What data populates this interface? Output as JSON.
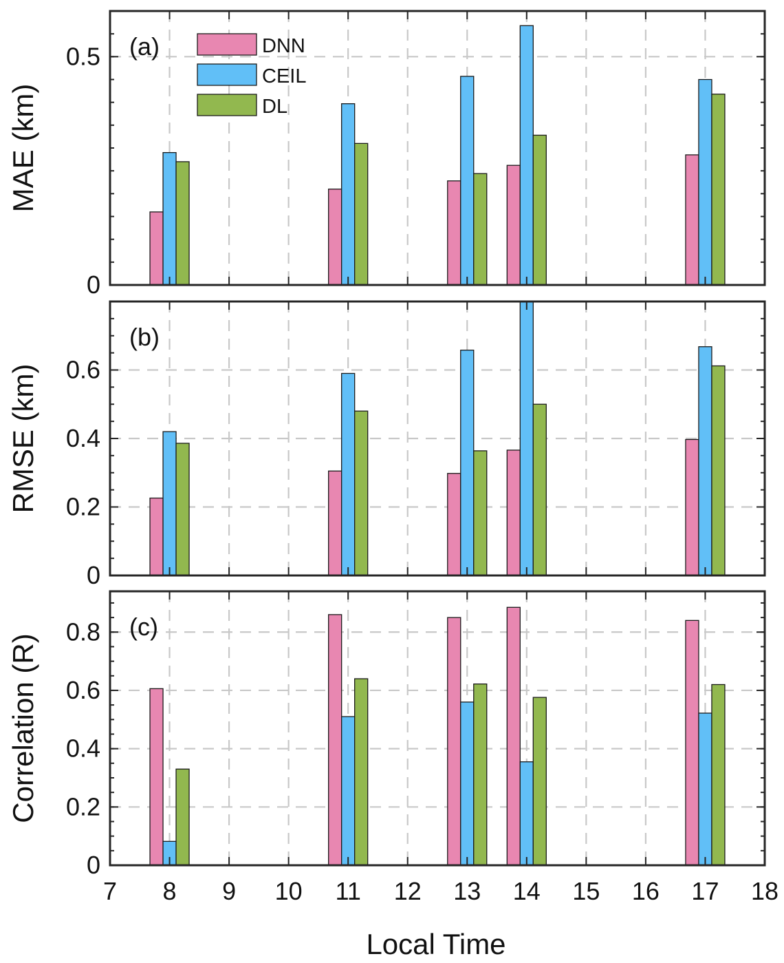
{
  "chart_data": [
    {
      "type": "bar",
      "panel_label": "(a)",
      "ylabel": "MAE (km)",
      "xlabel": "",
      "categories": [
        8,
        11,
        13,
        14,
        17
      ],
      "ylim": [
        0,
        0.6
      ],
      "yticks": [
        0,
        0.5
      ],
      "ytick_labels": [
        "0",
        "0.5"
      ],
      "grid": true,
      "legend": "top-left",
      "series": [
        {
          "name": "DNN",
          "color": "#e887b1",
          "values": [
            0.16,
            0.21,
            0.228,
            0.262,
            0.285
          ]
        },
        {
          "name": "CEIL",
          "color": "#61bff7",
          "values": [
            0.29,
            0.397,
            0.457,
            0.568,
            0.45
          ]
        },
        {
          "name": "DL",
          "color": "#92b84f",
          "values": [
            0.27,
            0.31,
            0.244,
            0.328,
            0.418
          ]
        }
      ]
    },
    {
      "type": "bar",
      "panel_label": "(b)",
      "ylabel": "RMSE (km)",
      "xlabel": "",
      "categories": [
        8,
        11,
        13,
        14,
        17
      ],
      "ylim": [
        0,
        0.8
      ],
      "yticks": [
        0,
        0.2,
        0.4,
        0.6
      ],
      "ytick_labels": [
        "0",
        "0.2",
        "0.4",
        "0.6"
      ],
      "grid": true,
      "series": [
        {
          "name": "DNN",
          "color": "#e887b1",
          "values": [
            0.226,
            0.305,
            0.298,
            0.366,
            0.397
          ]
        },
        {
          "name": "CEIL",
          "color": "#61bff7",
          "values": [
            0.42,
            0.59,
            0.658,
            0.8,
            0.668
          ]
        },
        {
          "name": "DL",
          "color": "#92b84f",
          "values": [
            0.386,
            0.48,
            0.364,
            0.5,
            0.612
          ]
        }
      ]
    },
    {
      "type": "bar",
      "panel_label": "(c)",
      "ylabel": "Correlation (R)",
      "xlabel": "Local Time",
      "categories": [
        8,
        11,
        13,
        14,
        17
      ],
      "ylim": [
        0,
        0.94
      ],
      "yticks": [
        0,
        0.2,
        0.4,
        0.6,
        0.8
      ],
      "ytick_labels": [
        "0",
        "0.2",
        "0.4",
        "0.6",
        "0.8"
      ],
      "grid": true,
      "series": [
        {
          "name": "DNN",
          "color": "#e887b1",
          "values": [
            0.606,
            0.86,
            0.85,
            0.885,
            0.84
          ]
        },
        {
          "name": "CEIL",
          "color": "#61bff7",
          "values": [
            0.082,
            0.51,
            0.56,
            0.355,
            0.522
          ]
        },
        {
          "name": "DL",
          "color": "#92b84f",
          "values": [
            0.33,
            0.64,
            0.622,
            0.576,
            0.62
          ]
        }
      ]
    }
  ],
  "x_axis": {
    "range": [
      7,
      18
    ],
    "ticks": [
      7,
      8,
      9,
      10,
      11,
      12,
      13,
      14,
      15,
      16,
      17,
      18
    ],
    "tick_labels": [
      "7",
      "8",
      "9",
      "10",
      "11",
      "12",
      "13",
      "14",
      "15",
      "16",
      "17",
      "18"
    ],
    "label": "Local Time"
  },
  "legend": {
    "entries": [
      "DNN",
      "CEIL",
      "DL"
    ]
  }
}
